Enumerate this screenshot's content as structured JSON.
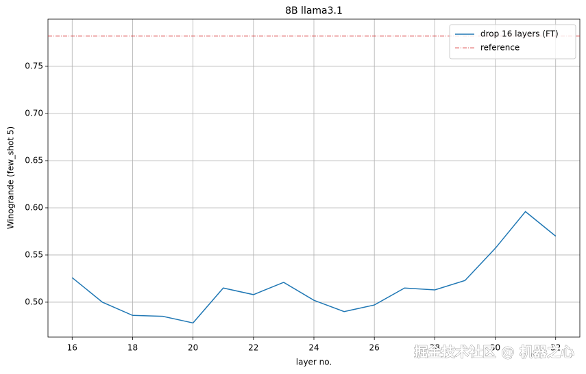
{
  "chart_data": {
    "type": "line",
    "title": "8B llama3.1",
    "xlabel": "layer no.",
    "ylabel": "Winogrande (few_shot 5)",
    "x": [
      16,
      17,
      18,
      19,
      20,
      21,
      22,
      23,
      24,
      25,
      26,
      27,
      28,
      29,
      30,
      31,
      32
    ],
    "series": [
      {
        "name": "drop 16 layers (FT)",
        "color": "#1f77b4",
        "values": [
          0.526,
          0.5,
          0.486,
          0.485,
          0.478,
          0.515,
          0.508,
          0.521,
          0.502,
          0.49,
          0.497,
          0.515,
          0.513,
          0.523,
          0.557,
          0.596,
          0.57
        ]
      }
    ],
    "reference": {
      "name": "reference",
      "value": 0.782,
      "color": "#d62728"
    },
    "xlim": [
      15.2,
      32.8
    ],
    "xticks": [
      16,
      18,
      20,
      22,
      24,
      26,
      28,
      30,
      32
    ],
    "ylim": [
      0.463,
      0.8
    ],
    "yticks": [
      {
        "value": 0.5,
        "label": "0.50"
      },
      0.55,
      {
        "value": 0.6,
        "label": "0.60"
      },
      0.65,
      {
        "value": 0.7,
        "label": "0.70"
      },
      0.75
    ],
    "grid": true,
    "legend": "upper right",
    "watermark": "掘金技术社区 @ 机器之心"
  }
}
